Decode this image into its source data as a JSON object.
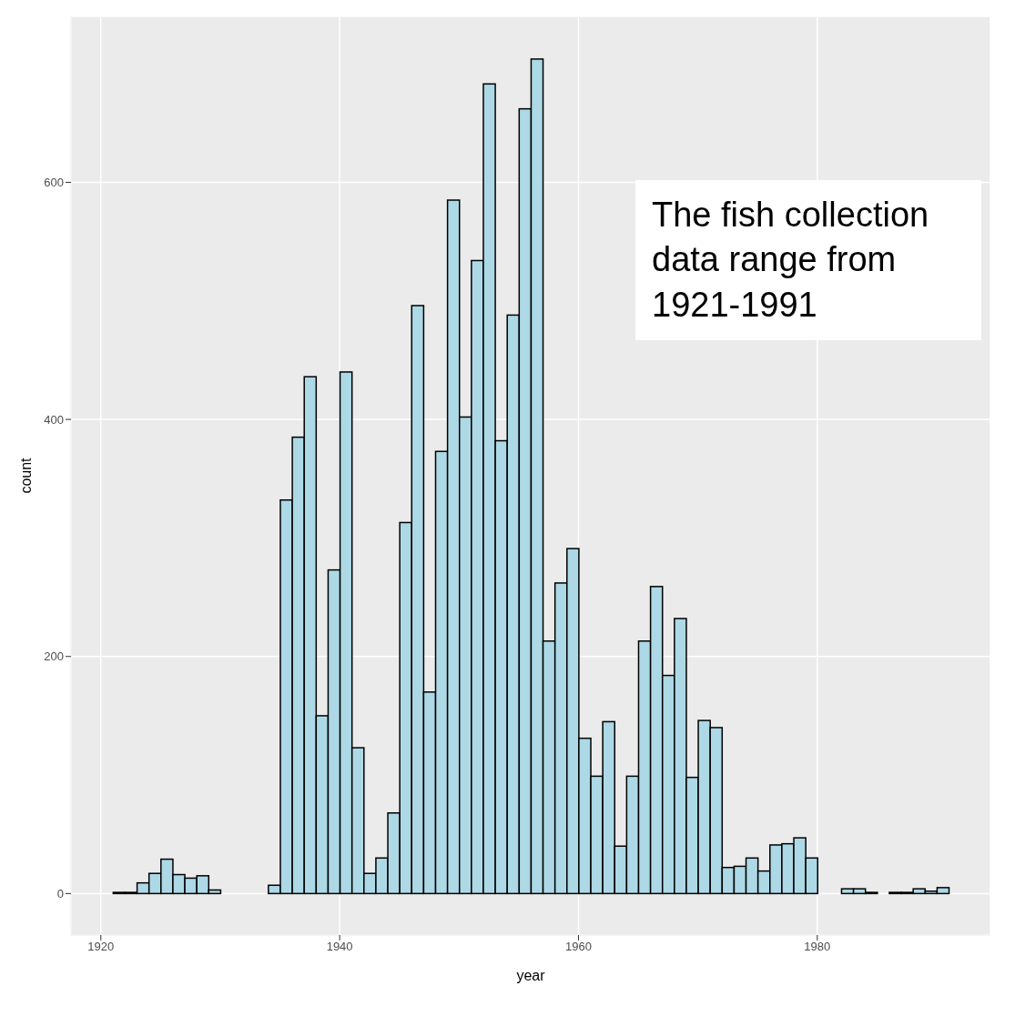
{
  "chart_data": {
    "type": "histogram",
    "xlabel": "year",
    "ylabel": "count",
    "bins": [
      1921,
      1922,
      1923,
      1924,
      1925,
      1926,
      1927,
      1928,
      1929,
      1930,
      1931,
      1932,
      1933,
      1934,
      1935,
      1936,
      1937,
      1938,
      1939,
      1940,
      1941,
      1942,
      1943,
      1944,
      1945,
      1946,
      1947,
      1948,
      1949,
      1950,
      1951,
      1952,
      1953,
      1954,
      1955,
      1956,
      1957,
      1958,
      1959,
      1960,
      1961,
      1962,
      1963,
      1964,
      1965,
      1966,
      1967,
      1968,
      1969,
      1970,
      1971,
      1972,
      1973,
      1974,
      1975,
      1976,
      1977,
      1978,
      1979,
      1980,
      1981,
      1982,
      1983,
      1984,
      1985,
      1986,
      1987,
      1988,
      1989,
      1990,
      1991
    ],
    "values": [
      1,
      1,
      9,
      17,
      29,
      16,
      13,
      15,
      3,
      0,
      0,
      0,
      0,
      7,
      332,
      385,
      436,
      150,
      273,
      440,
      123,
      17,
      30,
      68,
      313,
      496,
      170,
      373,
      585,
      402,
      534,
      683,
      382,
      488,
      662,
      704,
      213,
      262,
      291,
      131,
      99,
      145,
      40,
      99,
      213,
      259,
      184,
      232,
      98,
      146,
      140,
      22,
      23,
      30,
      19,
      41,
      42,
      47,
      30,
      0,
      0,
      4,
      4,
      1,
      0,
      1,
      1,
      4,
      2,
      5
    ],
    "color": "#add8e6",
    "xlim": [
      1917.5,
      1994.5
    ],
    "xticks": [
      1920,
      1940,
      1960,
      1980
    ],
    "ylim": [
      -35,
      740
    ],
    "yticks": [
      0,
      200,
      400,
      600
    ],
    "grid": true,
    "annotations": [
      "The fish collection data range from 1921-1991"
    ]
  }
}
